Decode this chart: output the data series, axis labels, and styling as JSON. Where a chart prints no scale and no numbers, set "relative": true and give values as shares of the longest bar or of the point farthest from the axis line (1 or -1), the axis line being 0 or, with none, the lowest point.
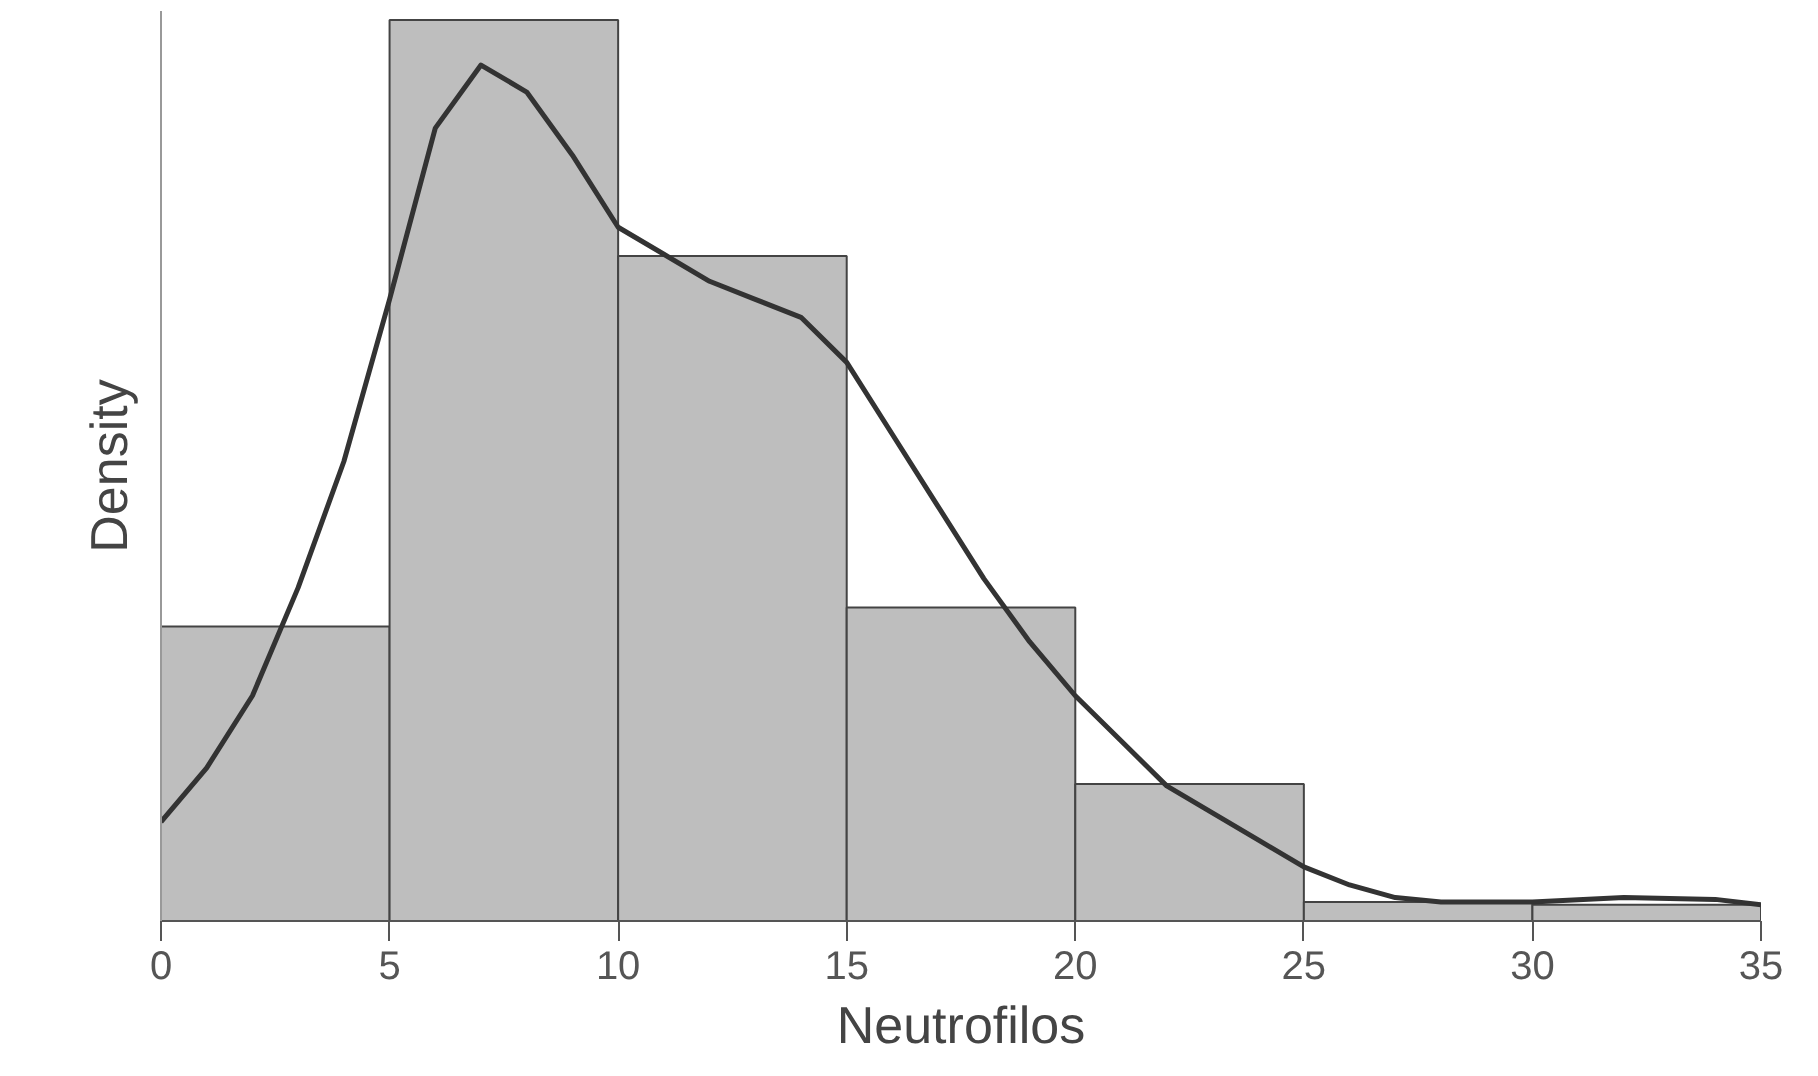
{
  "chart_data": {
    "type": "histogram",
    "xlabel": "Neutrofilos",
    "ylabel": "Density",
    "relative": true,
    "bins": [
      0,
      5,
      10,
      15,
      20,
      25,
      30,
      35
    ],
    "values": [
      0.327,
      1.0,
      0.738,
      0.348,
      0.152,
      0.021,
      0.018
    ],
    "color": "#bebebe",
    "xlim": [
      0,
      35
    ],
    "xticks": [
      0,
      5,
      10,
      15,
      20,
      25,
      30,
      35
    ],
    "tick_labels": "x",
    "grid": false,
    "series": [
      {
        "type": "line",
        "color": "#333333",
        "x": [
          0,
          1,
          2,
          3,
          4,
          5,
          6,
          7,
          8,
          9,
          10,
          11,
          12,
          13,
          14,
          15,
          16,
          17,
          18,
          19,
          20,
          21,
          22,
          23,
          24,
          25,
          26,
          27,
          28,
          30,
          32,
          34,
          35
        ],
        "values": [
          0.11,
          0.17,
          0.25,
          0.37,
          0.51,
          0.69,
          0.88,
          0.95,
          0.92,
          0.85,
          0.77,
          0.74,
          0.71,
          0.69,
          0.67,
          0.62,
          0.54,
          0.46,
          0.38,
          0.31,
          0.25,
          0.2,
          0.15,
          0.12,
          0.09,
          0.06,
          0.04,
          0.026,
          0.021,
          0.021,
          0.026,
          0.024,
          0.018
        ]
      }
    ]
  }
}
